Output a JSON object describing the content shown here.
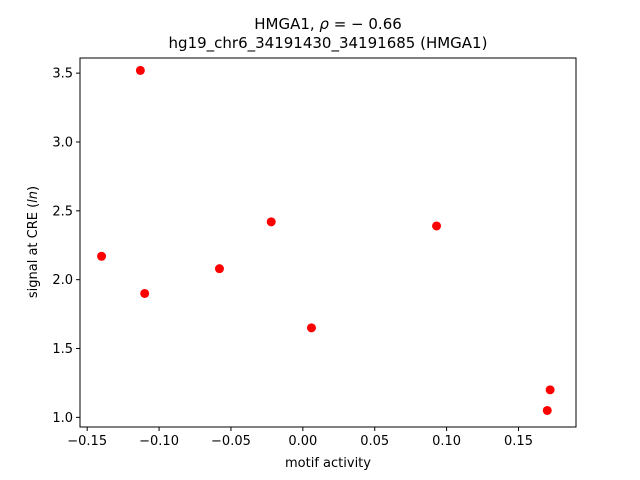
{
  "chart_data": {
    "type": "scatter",
    "title_line1_prefix": "HMGA1, ",
    "title_line1_rho": "ρ",
    "title_line1_suffix": " = − 0.66",
    "title_line2": "hg19_chr6_34191430_34191685 (HMGA1)",
    "xlabel": "motif activity",
    "ylabel_prefix": "signal at CRE (",
    "ylabel_italic": "ln",
    "ylabel_suffix": ")",
    "xlim": [
      -0.155,
      0.19
    ],
    "ylim": [
      0.93,
      3.61
    ],
    "xticks": [
      -0.15,
      -0.1,
      -0.05,
      0.0,
      0.05,
      0.1,
      0.15
    ],
    "xtick_labels": [
      "−0.15",
      "−0.10",
      "−0.05",
      "0.00",
      "0.05",
      "0.10",
      "0.15"
    ],
    "yticks": [
      1.0,
      1.5,
      2.0,
      2.5,
      3.0,
      3.5
    ],
    "ytick_labels": [
      "1.0",
      "1.5",
      "2.0",
      "2.5",
      "3.0",
      "3.5"
    ],
    "grid": false,
    "marker_color": "#ff0000",
    "points": [
      {
        "x": -0.14,
        "y": 2.17
      },
      {
        "x": -0.113,
        "y": 3.52
      },
      {
        "x": -0.11,
        "y": 1.9
      },
      {
        "x": -0.058,
        "y": 2.08
      },
      {
        "x": -0.022,
        "y": 2.42
      },
      {
        "x": 0.006,
        "y": 1.65
      },
      {
        "x": 0.093,
        "y": 2.39
      },
      {
        "x": 0.172,
        "y": 1.2
      },
      {
        "x": 0.17,
        "y": 1.05
      }
    ]
  }
}
